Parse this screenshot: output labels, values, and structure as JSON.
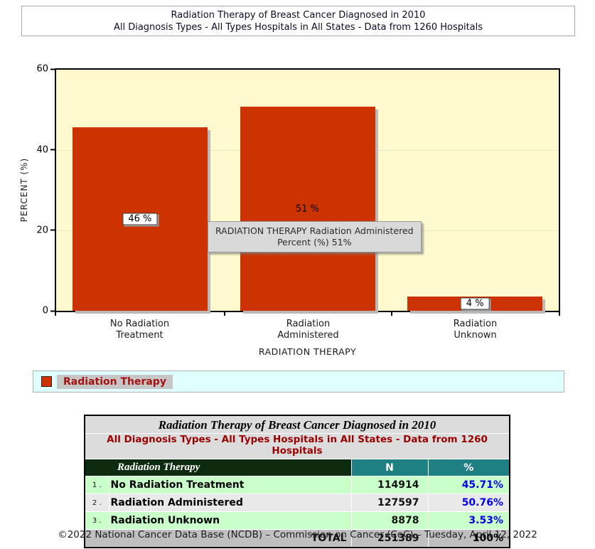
{
  "header": {
    "line1": "Radiation Therapy of Breast Cancer Diagnosed in 2010",
    "line2": "All Diagnosis Types - All Types Hospitals in All States - Data from 1260 Hospitals"
  },
  "chart": {
    "ylabel": "PERCENT (%)",
    "xlabel": "RADIATION THERAPY",
    "yticks": {
      "t60": "60",
      "t40": "40",
      "t20": "20",
      "t0": "0"
    },
    "bars": [
      {
        "label": "46 %",
        "cat_line1": "No Radiation",
        "cat_line2": "Treatment"
      },
      {
        "label": "51 %",
        "cat_line1": "Radiation",
        "cat_line2": "Administered"
      },
      {
        "label": "4 %",
        "cat_line1": "Radiation",
        "cat_line2": "Unknown"
      }
    ],
    "tooltip": {
      "line1": "RADIATION THERAPY Radiation Administered",
      "line2": "Percent (%) 51%"
    }
  },
  "legend": {
    "label": "Radiation Therapy"
  },
  "table": {
    "title": "Radiation Therapy of Breast Cancer Diagnosed in 2010",
    "subtitle": "All Diagnosis Types - All Types Hospitals in All States - Data from 1260 Hospitals",
    "col_group": "Radiation Therapy",
    "col_n": "N",
    "col_pct": "%",
    "rows": [
      {
        "num": "1 .",
        "name": "No Radiation Treatment",
        "n": "114914",
        "pct": "45.71%"
      },
      {
        "num": "2 .",
        "name": "Radiation Administered",
        "n": "127597",
        "pct": "50.76%"
      },
      {
        "num": "3 .",
        "name": "Radiation Unknown",
        "n": "8878",
        "pct": "3.53%"
      }
    ],
    "total_label": "TOTAL",
    "total_n": "251389",
    "total_pct": "100%"
  },
  "footer": "©2022 National Cancer Data Base (NCDB) – Commission on Cancer (CoC) – Tuesday, April 12, 2022",
  "chart_data": {
    "type": "bar",
    "title": "Radiation Therapy of Breast Cancer Diagnosed in 2010",
    "subtitle": "All Diagnosis Types - All Types Hospitals in All States - Data from 1260 Hospitals",
    "categories": [
      "No Radiation Treatment",
      "Radiation Administered",
      "Radiation Unknown"
    ],
    "values": [
      45.71,
      50.76,
      3.53
    ],
    "counts": [
      114914,
      127597,
      8878
    ],
    "total_count": 251389,
    "bar_value_labels": [
      "46 %",
      "51 %",
      "4 %"
    ],
    "xlabel": "RADIATION THERAPY",
    "ylabel": "PERCENT (%)",
    "ylim": [
      0,
      60
    ],
    "yticks": [
      0,
      20,
      40,
      60
    ],
    "grid": true,
    "legend_entries": [
      "Radiation Therapy"
    ],
    "legend_position": "bottom-strip",
    "bar_color": "#cc3300",
    "plot_bg": "#fffacd",
    "legend_bg": "#e0ffff",
    "pct_text_color": "#0000e0",
    "subtitle_color": "#990000",
    "header_green": "#0d2b0e",
    "header_teal": "#1f8084"
  }
}
